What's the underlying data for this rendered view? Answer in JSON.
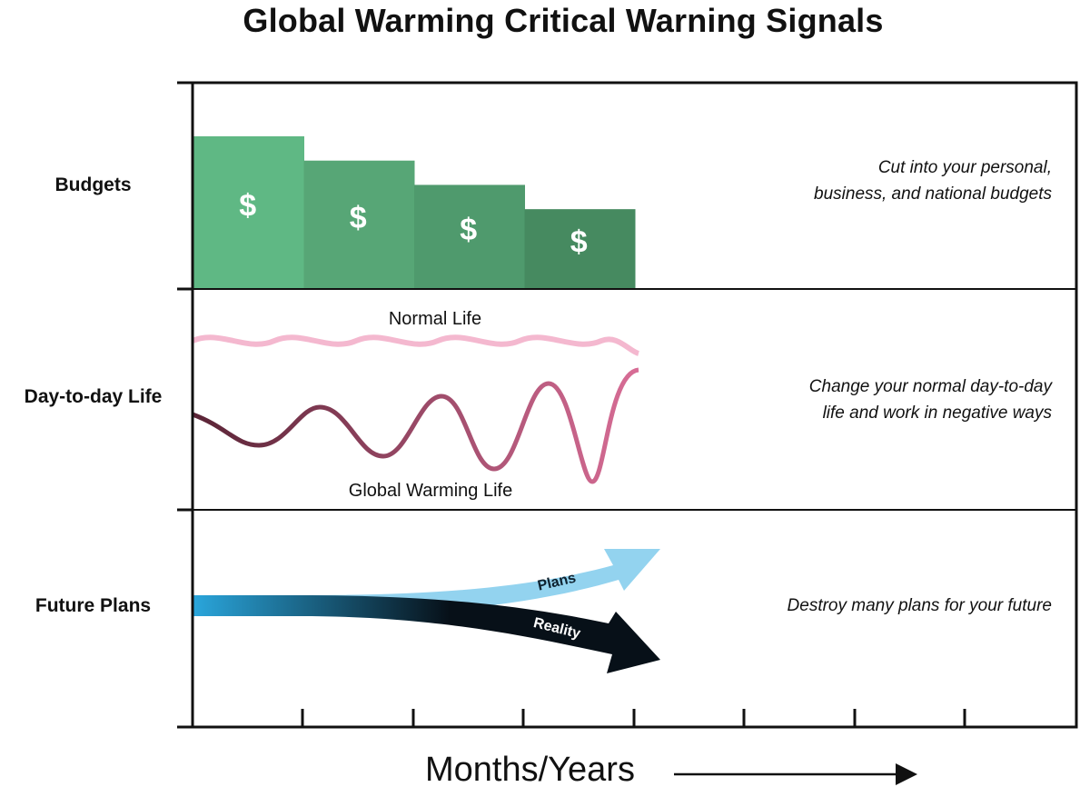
{
  "title": "Global Warming Critical Warning Signals",
  "rows": [
    {
      "label": "Budgets",
      "description_lines": [
        "Cut into your personal,",
        "business, and national budgets"
      ]
    },
    {
      "label": "Day-to-day Life",
      "description_lines": [
        "Change your normal day-to-day",
        "life and work in negative ways"
      ]
    },
    {
      "label": "Future Plans",
      "description_lines": [
        "Destroy many plans for your future"
      ]
    }
  ],
  "budget_bars": {
    "symbol": "$",
    "values": [
      100,
      84,
      68,
      52
    ],
    "colors": [
      "#5fb884",
      "#57a676",
      "#4f9a6d",
      "#468a60"
    ]
  },
  "life": {
    "normal_label": "Normal Life",
    "warming_label": "Global Warming Life",
    "normal_color": "#f4b8cf",
    "warming_gradient": [
      "#5a2436",
      "#d86d96"
    ]
  },
  "plans": {
    "plans_label": "Plans",
    "reality_label": "Reality",
    "plans_color": "#93d3ef",
    "start_color": "#2aa6dc",
    "reality_color": "#071018"
  },
  "x_axis_label": "Months/Years"
}
